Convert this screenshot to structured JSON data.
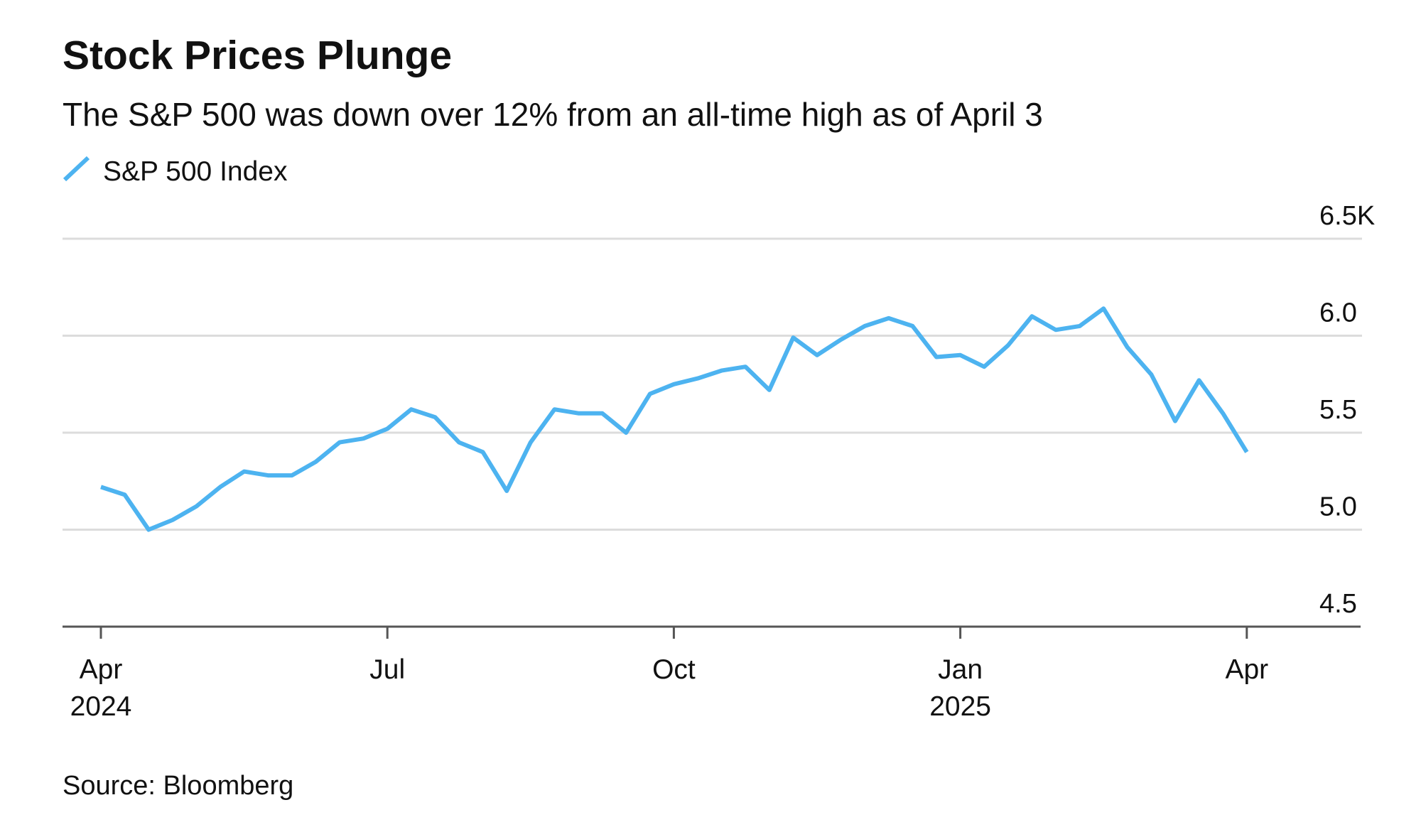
{
  "chart_data": {
    "type": "line",
    "title": "Stock Prices Plunge",
    "subtitle": "The S&P 500 was down over 12% from an all-time high as of April 3",
    "source": "Source: Bloomberg",
    "x": [
      "2024-04",
      "2024-04",
      "2024-04",
      "2024-04",
      "2024-05",
      "2024-05",
      "2024-05",
      "2024-05",
      "2024-06",
      "2024-06",
      "2024-06",
      "2024-06",
      "2024-07",
      "2024-07",
      "2024-07",
      "2024-07",
      "2024-08",
      "2024-08",
      "2024-08",
      "2024-08",
      "2024-09",
      "2024-09",
      "2024-09",
      "2024-09",
      "2024-10",
      "2024-10",
      "2024-10",
      "2024-10",
      "2024-11",
      "2024-11",
      "2024-11",
      "2024-11",
      "2024-12",
      "2024-12",
      "2024-12",
      "2024-12",
      "2025-01",
      "2025-01",
      "2025-01",
      "2025-01",
      "2025-02",
      "2025-02",
      "2025-02",
      "2025-02",
      "2025-03",
      "2025-03",
      "2025-03",
      "2025-03",
      "2025-04"
    ],
    "series": [
      {
        "name": "S&P 500 Index",
        "color": "#4db3f0",
        "values": [
          5.22,
          5.18,
          5.0,
          5.05,
          5.12,
          5.22,
          5.3,
          5.28,
          5.28,
          5.35,
          5.45,
          5.47,
          5.52,
          5.62,
          5.58,
          5.45,
          5.4,
          5.2,
          5.45,
          5.62,
          5.6,
          5.6,
          5.5,
          5.7,
          5.75,
          5.78,
          5.82,
          5.84,
          5.72,
          5.99,
          5.9,
          5.98,
          6.05,
          6.09,
          6.05,
          5.89,
          5.9,
          5.84,
          5.95,
          6.1,
          6.03,
          6.05,
          6.14,
          5.94,
          5.8,
          5.56,
          5.77,
          5.6,
          5.4
        ]
      }
    ],
    "ylim": [
      4.5,
      6.5
    ],
    "yticks": [
      4.5,
      {
        "value": 5,
        "label": "5.0"
      },
      5.5,
      {
        "value": 6,
        "label": "6.0"
      },
      {
        "value": 6.5,
        "label": "6.5K"
      }
    ],
    "xticks": [
      {
        "value": "2024-04",
        "label": "Apr 2024"
      },
      {
        "value": "2024-07",
        "label": "Jul"
      },
      {
        "value": "2024-10",
        "label": "Oct"
      },
      {
        "value": "2025-01",
        "label": "Jan 2025"
      },
      {
        "value": "2025-04",
        "label": "Apr"
      }
    ],
    "grid": true
  }
}
